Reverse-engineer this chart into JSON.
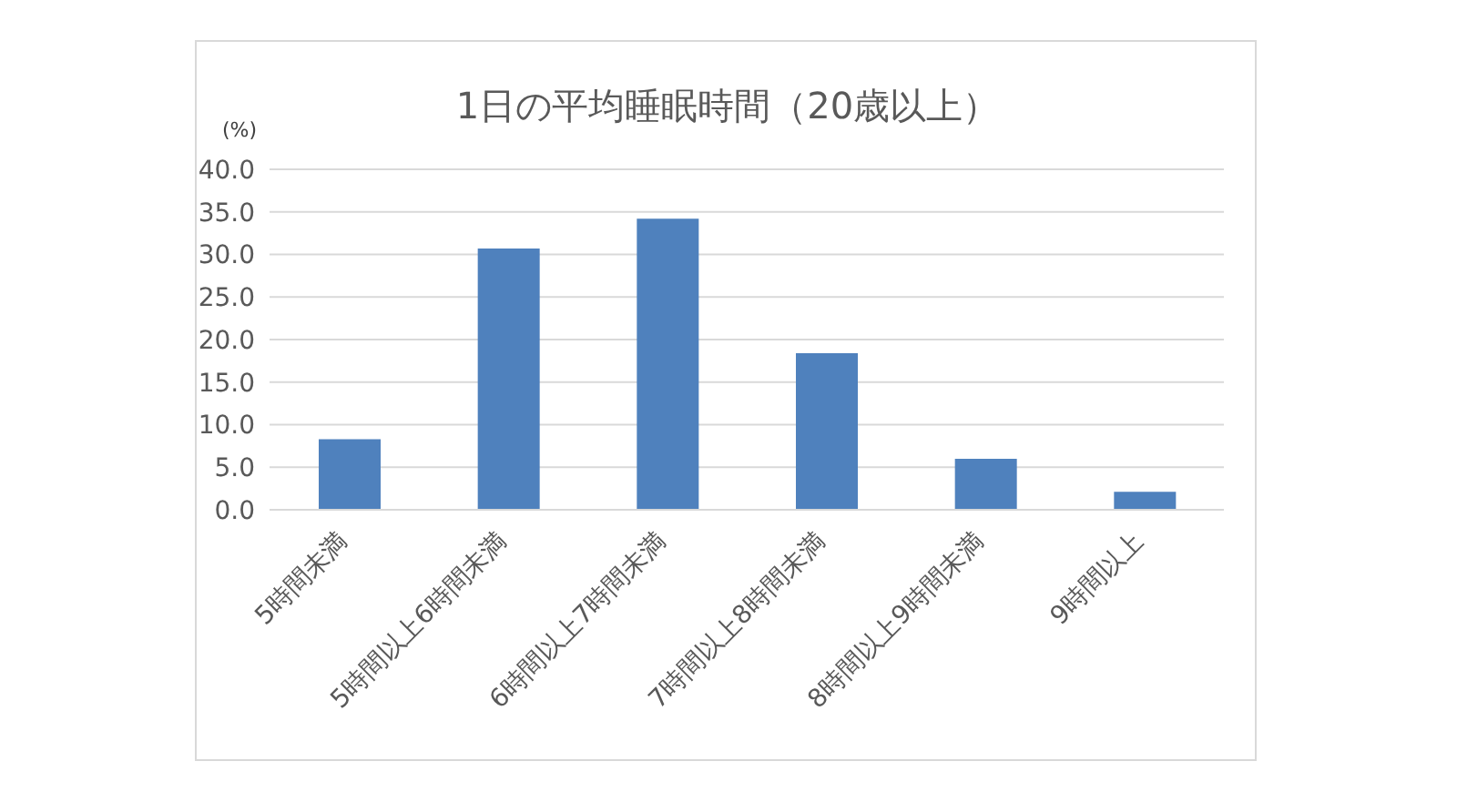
{
  "chart_data": {
    "type": "bar",
    "title": "1日の平均睡眠時間（20歳以上）",
    "ylabel": "(%)",
    "categories": [
      "5時間未満",
      "5時間以上6時間未満",
      "6時間以上7時間未満",
      "7時間以上8時間未満",
      "8時間以上9時間未満",
      "9時間以上"
    ],
    "values": [
      8.3,
      30.7,
      34.2,
      18.4,
      6.0,
      2.1
    ],
    "color": "#4f81bd",
    "ylim": [
      0,
      40
    ],
    "yticks": [
      {
        "value": 0,
        "label": "0.0"
      },
      {
        "value": 5,
        "label": "5.0"
      },
      {
        "value": 10,
        "label": "10.0"
      },
      {
        "value": 15,
        "label": "15.0"
      },
      {
        "value": 20,
        "label": "20.0"
      },
      {
        "value": 25,
        "label": "25.0"
      },
      {
        "value": 30,
        "label": "30.0"
      },
      {
        "value": 35,
        "label": "35.0"
      },
      {
        "value": 40,
        "label": "40.0"
      }
    ],
    "grid": "y",
    "legend": false
  }
}
